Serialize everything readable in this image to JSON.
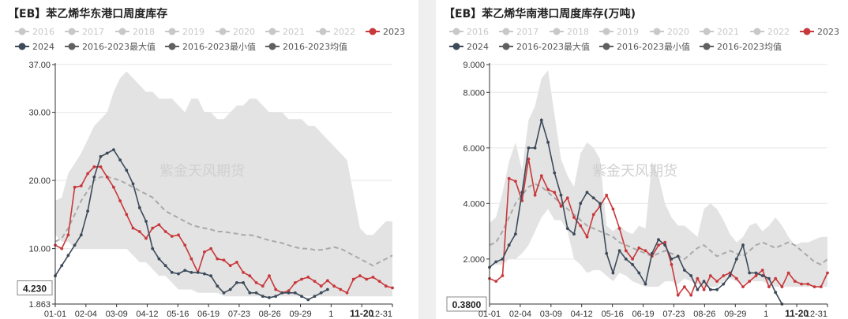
{
  "colors": {
    "band": "#e3e3e3",
    "avg": "#a9a9a9",
    "s2023": "#c8383b",
    "s2024": "#3d4a5a",
    "legend_dim": "#c8c8c8",
    "legend_dark": "#606060"
  },
  "chart_data": [
    {
      "type": "line",
      "title": "【EB】苯乙烯华东港口周度库存",
      "watermark": "紫金天风期货",
      "legend": [
        {
          "name": "2016",
          "dim": true
        },
        {
          "name": "2017",
          "dim": true
        },
        {
          "name": "2018",
          "dim": true
        },
        {
          "name": "2019",
          "dim": true
        },
        {
          "name": "2020",
          "dim": true
        },
        {
          "name": "2021",
          "dim": true
        },
        {
          "name": "2022",
          "dim": true
        },
        {
          "name": "2023",
          "dim": false
        },
        {
          "name": "2024",
          "dim": false
        },
        {
          "name": "2016-2023最大值",
          "dim": false
        },
        {
          "name": "2016-2023最小值",
          "dim": false
        },
        {
          "name": "2016-2023均值",
          "dim": false
        }
      ],
      "x_ticks": [
        "01-01",
        "02-04",
        "03-09",
        "04-12",
        "05-16",
        "06-19",
        "07-23",
        "08-26",
        "09-29",
        "1",
        "11-20",
        "12-31"
      ],
      "x_tick_highlight": "11-20",
      "y_ticks": [
        "37.00",
        "30.00",
        "20.00",
        "10.00",
        "1.863"
      ],
      "y_ticks_values": [
        37.0,
        30.0,
        20.0,
        10.0,
        1.863
      ],
      "ylim": [
        1.863,
        37.0
      ],
      "y_pointer": {
        "label": "4.230",
        "value": 4.23
      },
      "week_count": 53,
      "band_max": [
        17,
        17.5,
        21,
        22.5,
        24,
        26,
        28,
        29,
        30,
        33,
        35,
        36,
        35,
        34,
        33,
        33,
        32,
        32,
        32,
        31,
        30,
        32,
        32,
        30,
        30,
        29,
        29,
        30,
        31,
        31,
        32,
        32,
        31,
        30,
        30,
        30,
        29,
        29,
        29,
        28,
        28,
        27,
        26,
        25,
        24,
        23,
        18,
        13,
        12,
        12,
        13,
        14,
        14
      ],
      "band_min": [
        12,
        11,
        11,
        10,
        10,
        10,
        10,
        10,
        10,
        10,
        10,
        10,
        9,
        8,
        8,
        7,
        6,
        6,
        5,
        4,
        4,
        4,
        3.5,
        3.5,
        3.5,
        3.5,
        3,
        3,
        3,
        3,
        3,
        3,
        3,
        3,
        3,
        3,
        3,
        3,
        3,
        3,
        3,
        3,
        3,
        3,
        3,
        3,
        3,
        3,
        3,
        3,
        3,
        3,
        3
      ],
      "series": [
        {
          "name": "2016-2023均值",
          "values": [
            11,
            11.5,
            13,
            15,
            17,
            18.5,
            20,
            20.5,
            20.5,
            20.3,
            20,
            19.5,
            19,
            18.5,
            18,
            17.5,
            16.5,
            15.5,
            15,
            14.5,
            14,
            13.5,
            13.2,
            13,
            12.8,
            12.5,
            12.5,
            12.3,
            12.2,
            12,
            12,
            11.8,
            11.5,
            11.2,
            11,
            10.8,
            10.5,
            10.2,
            10,
            10,
            9.8,
            9.8,
            10,
            10.2,
            10,
            9.5,
            9,
            8.5,
            8,
            7.5,
            8,
            8.5,
            9
          ]
        },
        {
          "name": "2023",
          "values": [
            10.5,
            10,
            12,
            19,
            19.2,
            21,
            22,
            22,
            20.5,
            19,
            17,
            15,
            13,
            12.5,
            11.5,
            13,
            13.5,
            12.5,
            11.8,
            12,
            10.5,
            8.5,
            6.5,
            9.5,
            10,
            8.5,
            8.3,
            7.5,
            8,
            6.5,
            6,
            5,
            4.5,
            6,
            4,
            3.5,
            3.8,
            5,
            5.5,
            5.8,
            5.2,
            4.5,
            5.3,
            4.5,
            4.0,
            3.5,
            5.5,
            6,
            5.5,
            5.8,
            5.2,
            4.5,
            4.23
          ]
        },
        {
          "name": "2024",
          "values": [
            6,
            7.5,
            9,
            10.5,
            12,
            15.5,
            20.5,
            23.5,
            24,
            24.5,
            23,
            21.5,
            19.5,
            16,
            14,
            10,
            8.5,
            7.5,
            6.5,
            6.3,
            6.8,
            6.5,
            6.5,
            6.3,
            6,
            4.5,
            3.5,
            4,
            5,
            5,
            3.5,
            3.5,
            3.0,
            2.8,
            3.0,
            3.5,
            3.5,
            3.5,
            3.0,
            2.5,
            3.0,
            3.5,
            4.0
          ]
        }
      ]
    },
    {
      "type": "line",
      "title": "【EB】苯乙烯华南港口周度库存(万吨)",
      "watermark": "紫金天风期货",
      "legend": [
        {
          "name": "2016",
          "dim": true
        },
        {
          "name": "2017",
          "dim": true
        },
        {
          "name": "2018",
          "dim": true
        },
        {
          "name": "2019",
          "dim": true
        },
        {
          "name": "2020",
          "dim": true
        },
        {
          "name": "2021",
          "dim": true
        },
        {
          "name": "2022",
          "dim": true
        },
        {
          "name": "2023",
          "dim": false
        },
        {
          "name": "2024",
          "dim": false
        },
        {
          "name": "2016-2023最大值",
          "dim": false
        },
        {
          "name": "2016-2023最小值",
          "dim": false
        },
        {
          "name": "2016-2023均值",
          "dim": false
        }
      ],
      "x_ticks": [
        "01-01",
        "02-04",
        "03-09",
        "04-12",
        "05-16",
        "06-19",
        "07-23",
        "08-26",
        "09-29",
        "1",
        "11-20",
        "12-31"
      ],
      "x_tick_highlight": "11-20",
      "y_ticks": [
        "9.000",
        "8.000",
        "6.000",
        "4.000",
        "2.000"
      ],
      "y_ticks_values": [
        9.0,
        8.0,
        6.0,
        4.0,
        2.0
      ],
      "ylim": [
        0.38,
        9.0
      ],
      "y_pointer": {
        "label": "0.3800",
        "value": 0.38
      },
      "week_count": 53,
      "band_max": [
        3.3,
        3.5,
        4.4,
        5.5,
        6.2,
        5.2,
        7.0,
        7.5,
        8.5,
        8.8,
        7.2,
        5.6,
        5.0,
        4.6,
        5.8,
        6.2,
        6.0,
        5.6,
        3.2,
        3.0,
        3.2,
        3.0,
        2.9,
        3.2,
        3.1,
        5.5,
        5.0,
        4.0,
        3.5,
        3.2,
        3.2,
        3.0,
        2.8,
        3.8,
        4.0,
        3.8,
        3.4,
        2.9,
        2.6,
        2.8,
        3.2,
        3.3,
        3.0,
        3.2,
        3.5,
        3.2,
        2.8,
        2.5,
        2.6,
        2.6,
        2.7,
        2.8,
        2.8
      ],
      "band_min": [
        1.8,
        1.8,
        1.8,
        2.0,
        2.0,
        2.2,
        2.5,
        3.0,
        3.5,
        3.8,
        3.4,
        3.4,
        3.0,
        2.0,
        1.8,
        1.5,
        1.6,
        1.6,
        1.4,
        1.2,
        1.5,
        1.4,
        1.2,
        1.1,
        1.0,
        1.0,
        1.0,
        1.2,
        1.2,
        1.1,
        1.3,
        1.2,
        1.1,
        1.0,
        1.0,
        1.0,
        1.2,
        1.3,
        1.2,
        1.1,
        1.2,
        1.2,
        1.2,
        1.1,
        1.0,
        1.0,
        1.0,
        1.0,
        1.0,
        1.0,
        1.0,
        1.0,
        1.0
      ],
      "series": [
        {
          "name": "2016-2023均值",
          "values": [
            2.5,
            2.6,
            3.0,
            3.5,
            4.0,
            4.3,
            4.6,
            4.7,
            4.6,
            4.4,
            4.2,
            4.0,
            3.8,
            3.6,
            3.4,
            3.2,
            3.1,
            3.0,
            2.9,
            2.8,
            2.6,
            2.5,
            2.4,
            2.3,
            2.2,
            2.1,
            2.2,
            2.3,
            2.2,
            2.1,
            2.0,
            2.2,
            2.4,
            2.5,
            2.3,
            2.1,
            2.2,
            2.3,
            2.2,
            2.1,
            2.3,
            2.5,
            2.6,
            2.5,
            2.4,
            2.5,
            2.6,
            2.5,
            2.3,
            2.1,
            1.9,
            1.8,
            2.0
          ]
        },
        {
          "name": "2023",
          "values": [
            1.3,
            1.2,
            1.4,
            4.9,
            4.8,
            4.1,
            5.6,
            4.3,
            5.0,
            4.5,
            4.4,
            3.9,
            4.2,
            3.5,
            3.2,
            2.8,
            3.6,
            3.9,
            4.3,
            3.8,
            3.1,
            2.3,
            2.0,
            2.4,
            2.3,
            2.1,
            2.5,
            2.6,
            1.8,
            0.7,
            1.0,
            0.7,
            1.3,
            0.9,
            1.4,
            1.2,
            1.4,
            1.5,
            1.3,
            1.0,
            1.2,
            1.4,
            1.6,
            1.0,
            1.3,
            1.0,
            1.5,
            1.2,
            1.1,
            1.1,
            1.0,
            1.0,
            1.5
          ]
        },
        {
          "name": "2024",
          "values": [
            1.7,
            1.9,
            2.0,
            2.5,
            2.9,
            4.4,
            6.0,
            6.0,
            7.0,
            6.2,
            5.1,
            4.3,
            3.1,
            2.9,
            4.0,
            4.4,
            4.2,
            4.0,
            2.2,
            1.5,
            2.3,
            2.0,
            1.8,
            1.5,
            1.1,
            2.2,
            2.7,
            2.5,
            2.0,
            2.1,
            1.6,
            1.4,
            0.9,
            1.2,
            0.9,
            0.9,
            1.1,
            1.4,
            2.0,
            2.5,
            1.5,
            1.5,
            1.4,
            1.3,
            0.8,
            0.38
          ]
        }
      ]
    }
  ]
}
